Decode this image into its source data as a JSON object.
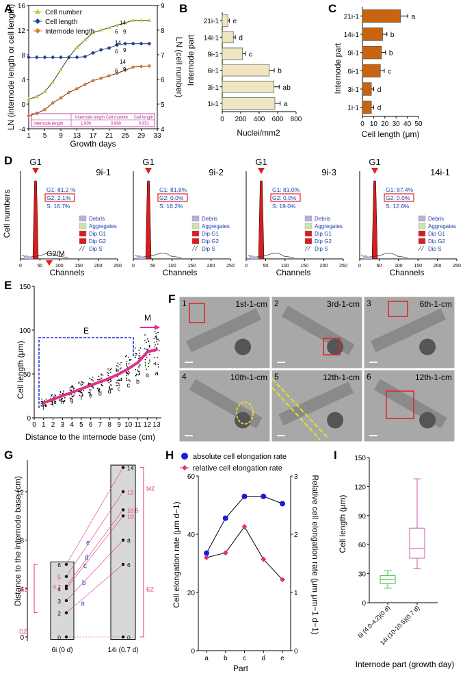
{
  "panel_labels": [
    "A",
    "B",
    "C",
    "D",
    "E",
    "F",
    "G",
    "H",
    "I"
  ],
  "panelA": {
    "chart_data": {
      "type": "line",
      "title": "",
      "xlabel": "Growth days",
      "ylabel_left": "LN (internode length or cell length)",
      "ylabel_right": "LN (cell number)",
      "x_ticks": [
        "1",
        "5",
        "9",
        "13",
        "17",
        "21",
        "25",
        "29",
        "33"
      ],
      "y_left_ticks": [
        "-4",
        "0",
        "4",
        "8",
        "12",
        "16"
      ],
      "y_right_ticks": [
        "4",
        "5",
        "6",
        "7",
        "8",
        "9"
      ],
      "ylim_left": [
        -4,
        16
      ],
      "ylim_right": [
        4,
        9
      ],
      "series": [
        {
          "name": "Cell number",
          "color": "#c8c832",
          "x": [
            1,
            3,
            5,
            7,
            9,
            11,
            13,
            15,
            17,
            19,
            21,
            23,
            25,
            27,
            29,
            31
          ],
          "y": [
            5.2,
            5.3,
            5.5,
            5.9,
            6.4,
            6.9,
            7.3,
            7.6,
            7.9,
            8.0,
            8.1,
            8.2,
            8.3,
            8.4,
            8.4,
            8.4
          ]
        },
        {
          "name": "Cell length",
          "color": "#1f3fa8",
          "x": [
            1,
            3,
            5,
            7,
            9,
            11,
            13,
            15,
            17,
            19,
            21,
            23,
            25,
            27,
            29,
            31
          ],
          "y": [
            7.6,
            7.6,
            7.6,
            7.6,
            7.6,
            7.6,
            7.6,
            7.7,
            8.3,
            8.8,
            9.1,
            9.6,
            9.8,
            9.8,
            9.8,
            9.8
          ]
        },
        {
          "name": "Internode length",
          "color": "#e07a2a",
          "x": [
            1,
            3,
            5,
            7,
            9,
            11,
            13,
            15,
            17,
            19,
            21,
            23,
            25,
            27,
            29,
            31
          ],
          "y": [
            -1.9,
            -1.5,
            -0.9,
            0.2,
            1.0,
            1.9,
            2.5,
            3.2,
            3.8,
            4.2,
            4.6,
            5.0,
            5.5,
            6.0,
            6.1,
            6.2
          ]
        }
      ],
      "annotations": [
        "14",
        "6",
        "9",
        "14",
        "6",
        "9",
        "14",
        "6",
        "9"
      ],
      "table": {
        "header": [
          "",
          "Internode length",
          "Cell number",
          "Cell length"
        ],
        "row": [
          "Internode length",
          "1.000",
          "0.960",
          "0.951"
        ]
      }
    }
  },
  "panelB": {
    "chart_data": {
      "type": "bar",
      "orientation": "horizontal",
      "categories": [
        "21i-1",
        "14i-1",
        "9i-1",
        "6i-1",
        "3i-1",
        "1i-1"
      ],
      "values": [
        60,
        120,
        220,
        510,
        560,
        570
      ],
      "letters": [
        "e",
        "d",
        "c",
        "b",
        "ab",
        "a"
      ],
      "xlabel": "Nuclei/mm2",
      "ylabel": "Internode part",
      "x_ticks": [
        "0",
        "200",
        "400",
        "600",
        "800"
      ],
      "xlim": [
        0,
        800
      ],
      "color": "#efe6c0"
    }
  },
  "panelC": {
    "chart_data": {
      "type": "bar",
      "orientation": "horizontal",
      "categories": [
        "21i-1",
        "14i-1",
        "9i-1",
        "6i-1",
        "3i-1",
        "1i-1"
      ],
      "values": [
        34,
        18,
        17,
        16,
        8,
        8
      ],
      "letters": [
        "a",
        "b",
        "b",
        "c",
        "d",
        "d"
      ],
      "xlabel": "Cell length (μm)",
      "ylabel": "Internode part",
      "x_ticks": [
        "0",
        "10",
        "20",
        "30",
        "40",
        "50"
      ],
      "xlim": [
        0,
        50
      ],
      "color": "#c8640f"
    }
  },
  "panelD": {
    "ylabel": "Cell numbers",
    "xlabel": "Channels",
    "legend": [
      "Debris",
      "Aggregates",
      "Dip G1",
      "Dip G2",
      "Dip S"
    ],
    "x_ticks": [
      "0",
      "50",
      "100",
      "150",
      "200",
      "250"
    ],
    "g2m_label": "G2/M",
    "plots": [
      {
        "sample": "9i-1",
        "peak": "G1",
        "g1": "G1: 81.2 %",
        "g2": "G2: 2.1%",
        "s": "S: 16.7%"
      },
      {
        "sample": "9i-2",
        "peak": "G1",
        "g1": "G1: 81.8%",
        "g2": "G2: 0.0%",
        "s": "S: 18.2%"
      },
      {
        "sample": "9i-3",
        "peak": "G1",
        "g1": "G1: 81.0%",
        "g2": "G2: 0.0%",
        "s": "S: 19.0%"
      },
      {
        "sample": "14i-1",
        "peak": "G1",
        "g1": "G1: 87.4%",
        "g2": "G2: 0.0%",
        "s": "S: 12.6%"
      }
    ]
  },
  "panelE": {
    "chart_data": {
      "type": "scatter",
      "xlabel": "Distance to the internode base (cm)",
      "ylabel": "Cell length (μm)",
      "x_ticks": [
        "0",
        "1",
        "2",
        "3",
        "4",
        "5",
        "6",
        "7",
        "8",
        "9",
        "10",
        "11",
        "12",
        "13"
      ],
      "y_ticks": [
        "0",
        "50",
        "100",
        "150"
      ],
      "xlim": [
        0,
        13.5
      ],
      "ylim": [
        0,
        150
      ],
      "positions": [
        1,
        2,
        3,
        4,
        5,
        6,
        7,
        8,
        9,
        10,
        11,
        12,
        13
      ],
      "means": [
        17,
        21,
        25,
        29,
        33,
        37,
        41,
        45,
        50,
        56,
        63,
        75,
        78
      ],
      "letters": [
        "j",
        "i",
        "h",
        "g",
        "f",
        "e",
        "d",
        "d",
        "c",
        "c",
        "b",
        "a",
        "a"
      ],
      "zone_E": "E",
      "zone_M": "M"
    }
  },
  "panelF": {
    "images": [
      {
        "num": "1",
        "label": "1st-1-cm"
      },
      {
        "num": "2",
        "label": "3rd-1-cm"
      },
      {
        "num": "3",
        "label": "6th-1-cm"
      },
      {
        "num": "4",
        "label": "10th-1-cm"
      },
      {
        "num": "5",
        "label": "12th-1-cm"
      },
      {
        "num": "6",
        "label": "12th-1-cm"
      }
    ]
  },
  "panelG": {
    "ylabel": "Distance to the internode base (cm)",
    "y_ticks": [
      "0",
      "4",
      "8",
      "12"
    ],
    "columns": [
      "6i (0 d)",
      "14i (0.7 d)"
    ],
    "left_points": [
      "0",
      "2",
      "3",
      "4",
      "4.2",
      "5",
      "6"
    ],
    "right_points": [
      "0",
      "6",
      "8",
      "10",
      "10.5",
      "12",
      "14"
    ],
    "links": [
      "a",
      "b",
      "c",
      "d",
      "e"
    ],
    "zones": [
      "DZ",
      "EZ",
      "EZ",
      "MZ"
    ]
  },
  "panelH": {
    "chart_data": {
      "type": "line",
      "xlabel": "Part",
      "ylabel_left": "Cell elongation rate (μm d−1)",
      "ylabel_right": "Relative cell elongation rate (μm μm−1 d−1)",
      "categories": [
        "a",
        "b",
        "c",
        "d",
        "e"
      ],
      "y_left_ticks": [
        "0",
        "20",
        "40",
        "60"
      ],
      "y_right_ticks": [
        "0",
        "1",
        "2",
        "3"
      ],
      "ylim_left": [
        0,
        60
      ],
      "ylim_right": [
        0,
        3
      ],
      "series": [
        {
          "name": "absolute cell elongation rate",
          "color": "#1a1adc",
          "axis": "left",
          "values": [
            33.5,
            45.5,
            53,
            53,
            50.5
          ]
        },
        {
          "name": "relative cell elongation rate",
          "color": "#e0308a",
          "axis": "right",
          "values": [
            1.6,
            1.68,
            2.13,
            1.57,
            1.22
          ]
        }
      ]
    }
  },
  "panelI": {
    "chart_data": {
      "type": "box",
      "ylabel": "Cell length (μm)",
      "xlabel": "Internode part (growth day)",
      "y_ticks": [
        "0",
        "30",
        "60",
        "90",
        "120",
        "150"
      ],
      "ylim": [
        0,
        150
      ],
      "categories": [
        "6i (4.0-4.2)(0 d)",
        "14i (10-10.5)(0.7 d)"
      ],
      "boxes": [
        {
          "min": 15,
          "q1": 20,
          "median": 24,
          "q3": 28,
          "max": 33,
          "color": "#3cbf3c"
        },
        {
          "min": 35,
          "q1": 46,
          "median": 56,
          "q3": 77,
          "max": 128,
          "color": "#d05aa8"
        }
      ]
    }
  }
}
